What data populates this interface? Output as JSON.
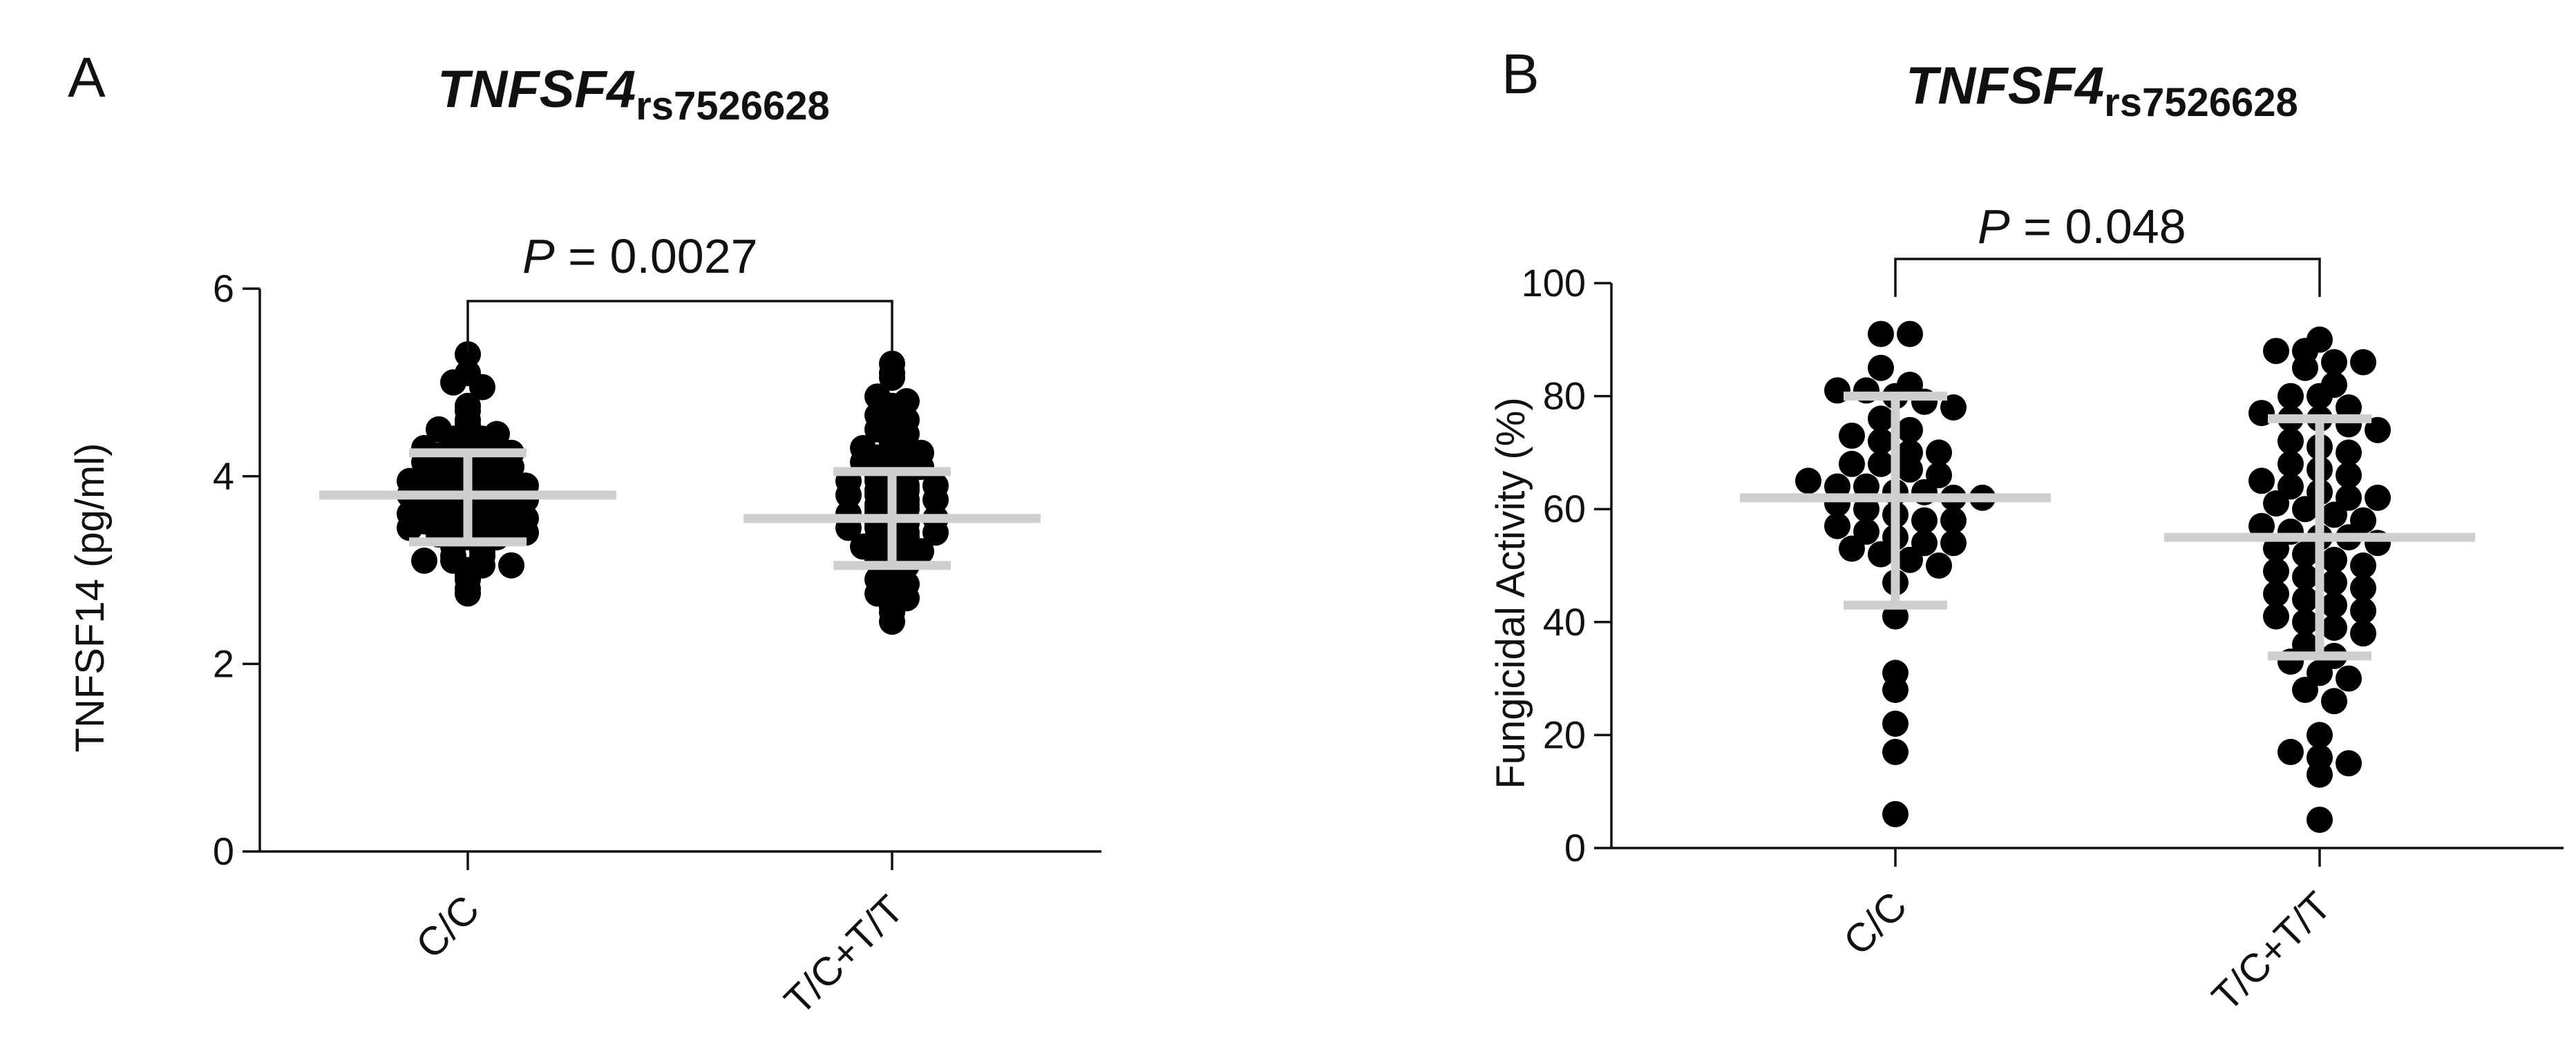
{
  "chart_data": [
    {
      "type": "scatter",
      "panel_label": "A",
      "title": "TNFSF4",
      "title_subscript": "rs7526628",
      "xlabel": "",
      "ylabel": "TNFSF14 (pg/ml)",
      "ylim": [
        0,
        6
      ],
      "yticks": [
        0,
        2,
        4,
        6
      ],
      "categories": [
        "C/C",
        "T/C+T/T"
      ],
      "series": [
        {
          "category": "C/C",
          "values": [
            5.3,
            5.1,
            5.0,
            4.95,
            4.75,
            4.7,
            4.6,
            4.55,
            4.5,
            4.45,
            4.45,
            4.4,
            4.4,
            4.35,
            4.35,
            4.3,
            4.3,
            4.28,
            4.25,
            4.22,
            4.2,
            4.18,
            4.15,
            4.12,
            4.1,
            4.1,
            4.08,
            4.05,
            4.05,
            4.02,
            4.0,
            4.0,
            3.98,
            3.95,
            3.95,
            3.92,
            3.9,
            3.9,
            3.88,
            3.85,
            3.85,
            3.82,
            3.8,
            3.8,
            3.78,
            3.75,
            3.75,
            3.72,
            3.7,
            3.7,
            3.68,
            3.65,
            3.65,
            3.62,
            3.6,
            3.6,
            3.58,
            3.55,
            3.55,
            3.52,
            3.5,
            3.5,
            3.48,
            3.45,
            3.45,
            3.42,
            3.4,
            3.4,
            3.38,
            3.35,
            3.35,
            3.3,
            3.3,
            3.25,
            3.2,
            3.15,
            3.15,
            3.1,
            3.1,
            3.05,
            3.05,
            3.0,
            2.95,
            2.9,
            2.8,
            2.75
          ],
          "mean": 3.8,
          "sd_low": 3.3,
          "sd_high": 4.25
        },
        {
          "category": "T/C+T/T",
          "values": [
            5.2,
            5.1,
            5.05,
            4.85,
            4.8,
            4.75,
            4.7,
            4.65,
            4.6,
            4.55,
            4.5,
            4.45,
            4.4,
            4.35,
            4.3,
            4.3,
            4.25,
            4.2,
            4.2,
            4.15,
            4.1,
            4.1,
            4.05,
            4.0,
            4.0,
            3.95,
            3.95,
            3.9,
            3.9,
            3.85,
            3.85,
            3.8,
            3.8,
            3.75,
            3.75,
            3.7,
            3.7,
            3.65,
            3.65,
            3.6,
            3.6,
            3.55,
            3.55,
            3.5,
            3.5,
            3.45,
            3.45,
            3.4,
            3.4,
            3.35,
            3.35,
            3.3,
            3.3,
            3.25,
            3.2,
            3.2,
            3.15,
            3.15,
            3.1,
            3.05,
            3.0,
            2.95,
            2.9,
            2.85,
            2.8,
            2.75,
            2.7,
            2.6,
            2.55,
            2.45
          ],
          "mean": 3.55,
          "sd_low": 3.05,
          "sd_high": 4.05
        }
      ],
      "annotation": {
        "p_symbol": "P",
        "p_text": " = 0.0027"
      }
    },
    {
      "type": "scatter",
      "panel_label": "B",
      "title": "TNFSF4",
      "title_subscript": "rs7526628",
      "xlabel": "",
      "ylabel": "Fungicidal Activity (%)",
      "ylim": [
        0,
        100
      ],
      "yticks": [
        0,
        20,
        40,
        60,
        80,
        100
      ],
      "categories": [
        "C/C",
        "T/C+T/T"
      ],
      "series": [
        {
          "category": "C/C",
          "values": [
            91,
            91,
            85,
            82,
            81,
            81,
            80,
            79,
            78,
            76,
            74,
            73,
            72,
            70,
            70,
            68,
            68,
            67,
            66,
            65,
            64,
            64,
            63,
            63,
            62,
            62,
            61,
            60,
            59,
            58,
            58,
            57,
            56,
            55,
            54,
            54,
            53,
            52,
            51,
            50,
            47,
            41,
            31,
            28,
            22,
            17,
            6
          ],
          "mean": 62,
          "sd_low": 43,
          "sd_high": 80
        },
        {
          "category": "T/C+T/T",
          "values": [
            90,
            88,
            88,
            86,
            86,
            85,
            82,
            80,
            80,
            78,
            77,
            76,
            76,
            75,
            74,
            72,
            71,
            70,
            68,
            67,
            66,
            65,
            64,
            63,
            62,
            62,
            61,
            60,
            59,
            58,
            57,
            56,
            55,
            55,
            54,
            53,
            52,
            51,
            50,
            49,
            48,
            47,
            46,
            45,
            44,
            43,
            42,
            41,
            40,
            39,
            38,
            36,
            34,
            33,
            31,
            30,
            28,
            26,
            20,
            17,
            16,
            15,
            13,
            5
          ],
          "mean": 55,
          "sd_low": 34,
          "sd_high": 76
        }
      ],
      "annotation": {
        "p_symbol": "P",
        "p_text": " = 0.048"
      }
    }
  ]
}
